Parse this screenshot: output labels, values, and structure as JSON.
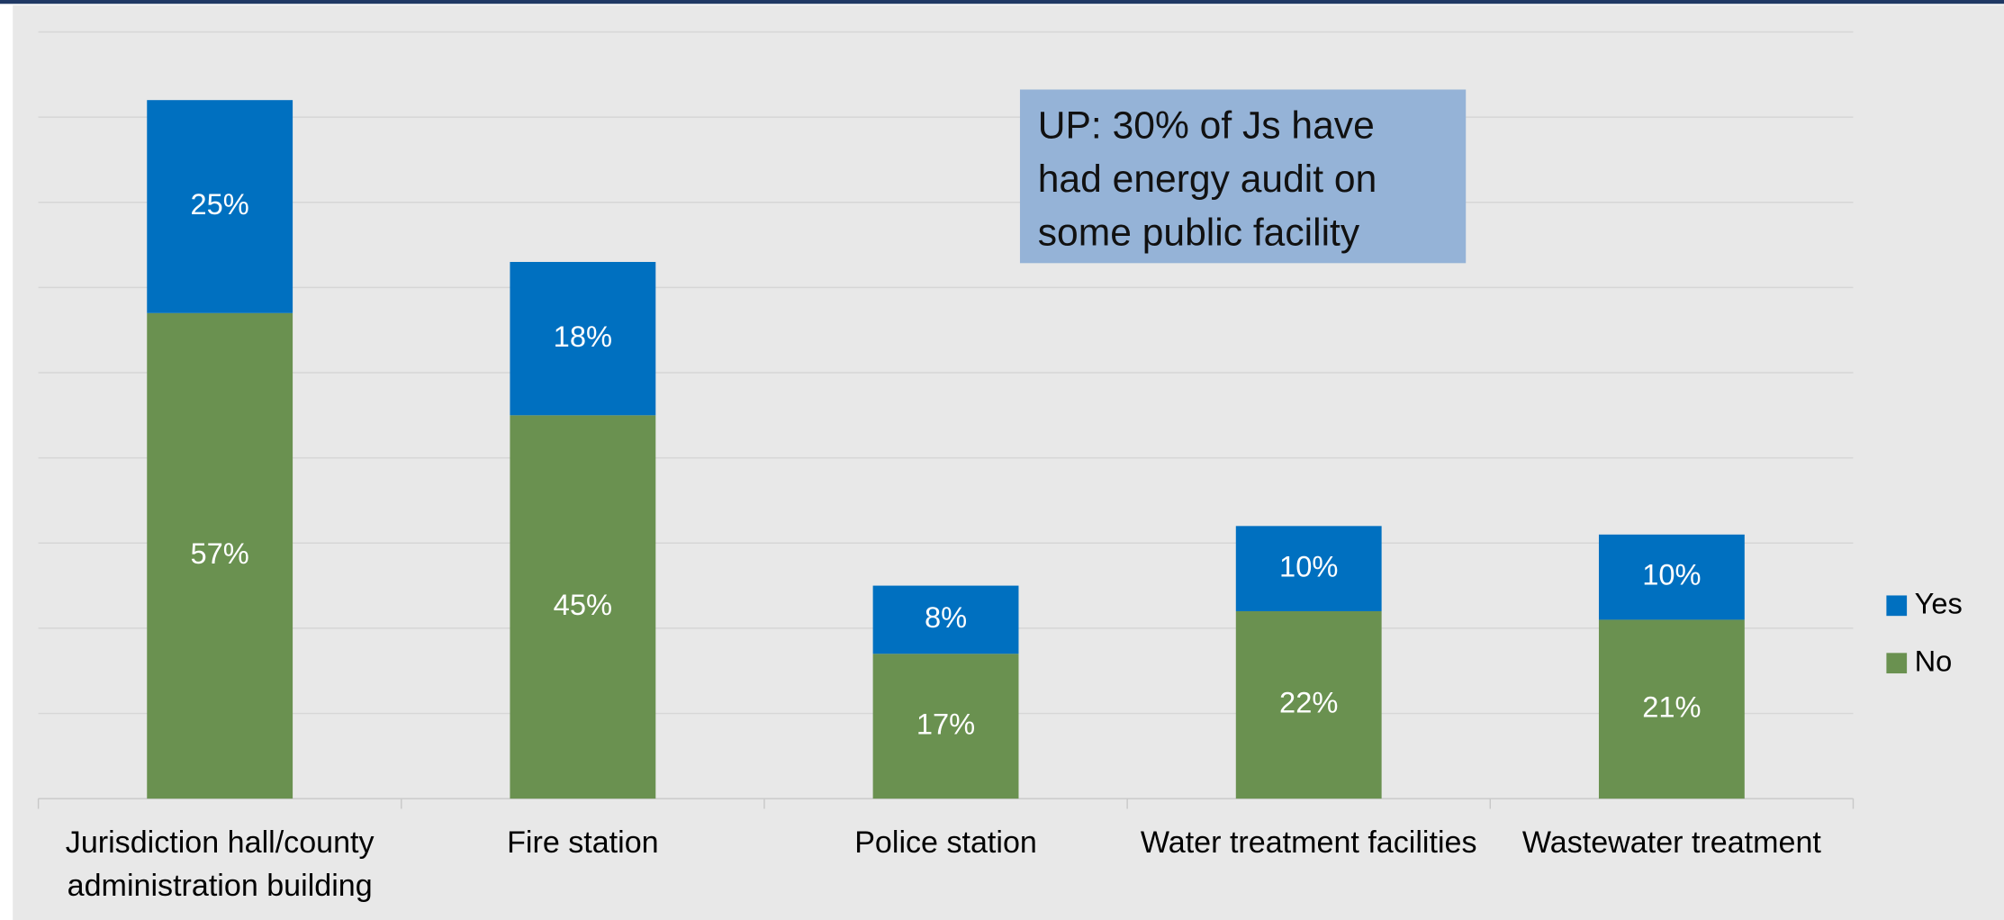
{
  "chart_data": {
    "type": "stacked_bar",
    "categories": [
      "Jurisdiction hall/county administration building",
      "Fire station",
      "Police station",
      "Water treatment facilities",
      "Wastewater treatment"
    ],
    "series": [
      {
        "name": "No",
        "color": "#6a9150",
        "values": [
          57,
          45,
          17,
          22,
          21
        ],
        "value_labels": [
          "57%",
          "45%",
          "17%",
          "22%",
          "21%"
        ]
      },
      {
        "name": "Yes",
        "color": "#0070c0",
        "values": [
          25,
          18,
          8,
          10,
          10
        ],
        "value_labels": [
          "25%",
          "18%",
          "8%",
          "10%",
          "10%"
        ]
      }
    ],
    "ylim": [
      0,
      90
    ],
    "yticks": [
      0,
      10,
      20,
      30,
      40,
      50,
      60,
      70,
      80,
      90
    ],
    "grid": true,
    "legend": "right",
    "annotation": "UP: 30% of Js have had energy audit on some public facility"
  }
}
